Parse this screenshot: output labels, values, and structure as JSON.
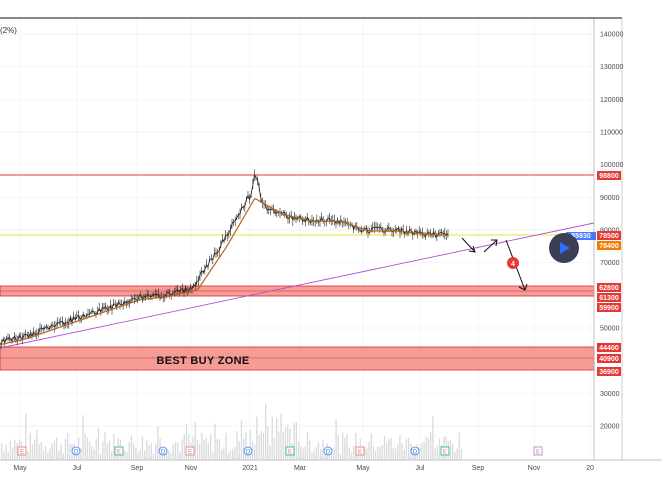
{
  "header": {
    "partial_title": "(2%)"
  },
  "axis": {
    "y_ticks": [
      "140000",
      "130000",
      "120000",
      "110000",
      "100000",
      "90000",
      "80000",
      "70000",
      "60000",
      "50000",
      "40000",
      "30000",
      "20000"
    ],
    "x_ticks": [
      "May",
      "Jul",
      "Sep",
      "Nov",
      "2021",
      "Mar",
      "May",
      "Jul",
      "Sep",
      "Nov",
      "20"
    ]
  },
  "level_labels": {
    "resistance": "98800",
    "price_partial": "85930",
    "current": "78500",
    "trendline": "78400",
    "band_top": "62800",
    "band_mid": "61300",
    "band_low": "59900",
    "buy_top": "44400",
    "buy_mid": "40900",
    "buy_low": "36900"
  },
  "annotations": {
    "buy_zone": "BEST BUY ZONE",
    "marker": "4"
  },
  "events": [
    {
      "letter": "E",
      "kind": "earnings"
    },
    {
      "letter": "D",
      "kind": "dividend"
    },
    {
      "letter": "E",
      "kind": "earnings"
    },
    {
      "letter": "D",
      "kind": "dividend"
    },
    {
      "letter": "E",
      "kind": "earnings"
    },
    {
      "letter": "D",
      "kind": "dividend"
    },
    {
      "letter": "E",
      "kind": "earnings"
    },
    {
      "letter": "D",
      "kind": "dividend"
    },
    {
      "letter": "E",
      "kind": "earnings"
    },
    {
      "letter": "D",
      "kind": "dividend"
    },
    {
      "letter": "E",
      "kind": "earnings"
    },
    {
      "letter": "E",
      "kind": "future-earnings"
    }
  ],
  "colors": {
    "resistance_line": "#e53935",
    "zone_fill": "#f28b82",
    "zone_border": "#d32f2f",
    "label_red": "#e53935",
    "label_orange": "#f57c00",
    "label_blue": "#2962ff",
    "trendline": "#b44fd6",
    "current_line": "#e0d600",
    "price": "#222222",
    "ma": "#b5651d",
    "volume": "#d9dadc",
    "play_button": "#3a3f55",
    "play_icon": "#2f6bff"
  },
  "chart_data": {
    "type": "line",
    "x": [
      "2020-04",
      "2020-05",
      "2020-06",
      "2020-07",
      "2020-08",
      "2020-09",
      "2020-10",
      "2020-11",
      "2020-12",
      "2021-01",
      "2021-02",
      "2021-03",
      "2021-04",
      "2021-05",
      "2021-06",
      "2021-07",
      "2021-08"
    ],
    "series": [
      {
        "values": [
          45000,
          47000,
          50000,
          53000,
          56000,
          59000,
          60000,
          62000,
          75000,
          90000,
          85000,
          83000,
          83000,
          80000,
          80000,
          79000,
          78500
        ]
      }
    ],
    "levels": [
      98800,
      62800,
      61300,
      59900,
      44400,
      40900,
      36900
    ],
    "zones": [
      {
        "from": 59900,
        "to": 62800
      },
      {
        "from": 36900,
        "to": 44400,
        "label": "BEST BUY ZONE"
      }
    ],
    "trendline": {
      "from": [
        "2020-03",
        46000
      ],
      "to": [
        "2021-12",
        82000
      ]
    },
    "horizontal_line": 78500,
    "y_axis_range": [
      10000,
      145000
    ],
    "x_axis_labels": [
      "May",
      "Jul",
      "Sep",
      "Nov",
      "2021",
      "Mar",
      "May",
      "Jul",
      "Sep",
      "Nov",
      "20"
    ],
    "y_tick_values": [
      140000,
      130000,
      120000,
      110000,
      100000,
      90000,
      80000,
      70000,
      60000,
      50000,
      40000,
      30000,
      20000
    ],
    "xlabel": "",
    "ylabel": "",
    "grid": true,
    "legend": "none"
  }
}
